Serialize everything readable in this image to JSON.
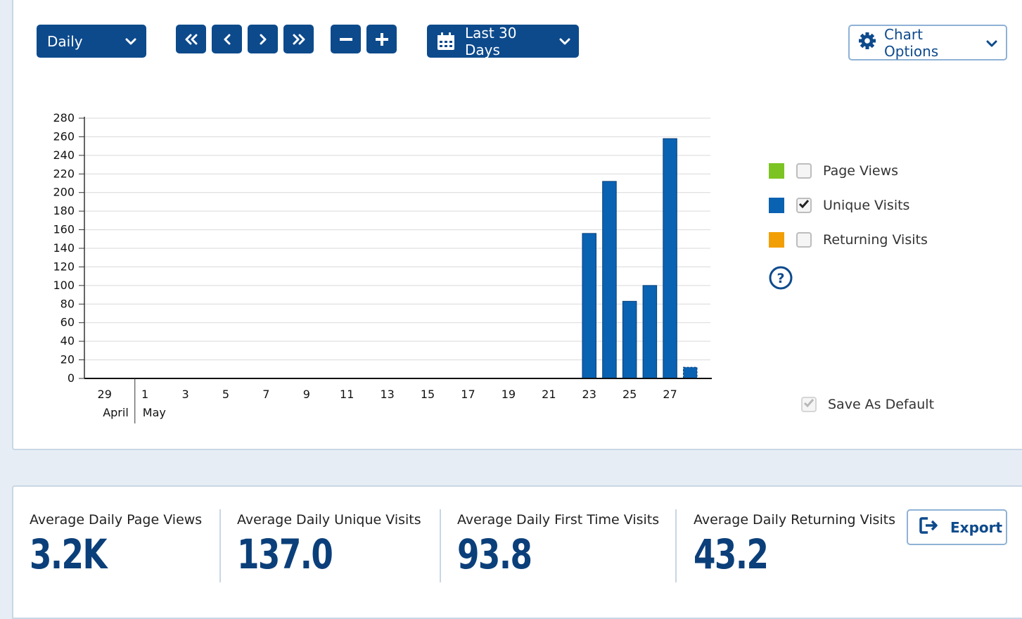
{
  "toolbar": {
    "interval_label": "Daily",
    "range_label": "Last 30 Days",
    "chart_options_label": "Chart Options"
  },
  "legend": {
    "items": [
      {
        "label": "Page Views",
        "color": "#7cc423",
        "checked": false
      },
      {
        "label": "Unique Visits",
        "color": "#0a62b2",
        "checked": true
      },
      {
        "label": "Returning Visits",
        "color": "#f29f05",
        "checked": false
      }
    ],
    "save_default_label": "Save As Default"
  },
  "chart_data": {
    "type": "bar",
    "series": [
      {
        "name": "Unique Visits",
        "color": "#0a62b2",
        "x": [
          "2024-04-29",
          "2024-04-30",
          "2024-05-01",
          "2024-05-02",
          "2024-05-03",
          "2024-05-04",
          "2024-05-05",
          "2024-05-06",
          "2024-05-07",
          "2024-05-08",
          "2024-05-09",
          "2024-05-10",
          "2024-05-11",
          "2024-05-12",
          "2024-05-13",
          "2024-05-14",
          "2024-05-15",
          "2024-05-16",
          "2024-05-17",
          "2024-05-18",
          "2024-05-19",
          "2024-05-20",
          "2024-05-21",
          "2024-05-22",
          "2024-05-23",
          "2024-05-24",
          "2024-05-25",
          "2024-05-26",
          "2024-05-27",
          "2024-05-28"
        ],
        "values": [
          0,
          0,
          0,
          0,
          0,
          0,
          0,
          0,
          0,
          0,
          0,
          0,
          0,
          0,
          0,
          0,
          0,
          0,
          0,
          0,
          0,
          0,
          0,
          0,
          156,
          212,
          83,
          100,
          258,
          12
        ],
        "partial_last": true
      }
    ],
    "x_tick_labels": [
      "29",
      "1",
      "3",
      "5",
      "7",
      "9",
      "11",
      "13",
      "15",
      "17",
      "19",
      "21",
      "23",
      "25",
      "27"
    ],
    "month_labels": [
      "April",
      "May"
    ],
    "y_ticks": [
      0,
      20,
      40,
      60,
      80,
      100,
      120,
      140,
      160,
      180,
      200,
      220,
      240,
      260,
      280
    ],
    "ylim": [
      0,
      280
    ],
    "grid": true,
    "title": "",
    "xlabel": "",
    "ylabel": ""
  },
  "stats": [
    {
      "label": "Average Daily Page Views",
      "value": "3.2K"
    },
    {
      "label": "Average Daily Unique Visits",
      "value": "137.0"
    },
    {
      "label": "Average Daily First Time Visits",
      "value": "93.8"
    },
    {
      "label": "Average Daily Returning Visits",
      "value": "43.2"
    }
  ],
  "export_label": "Export"
}
